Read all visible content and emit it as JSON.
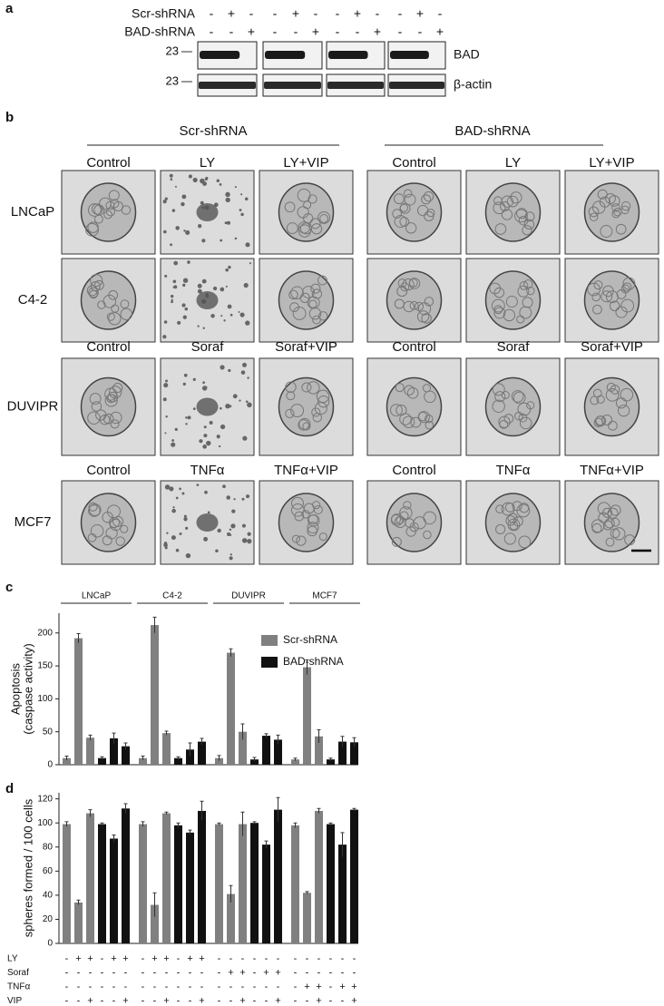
{
  "panel_a": {
    "label": "a",
    "rows": [
      {
        "name": "Scr-shRNA",
        "signs": [
          "-",
          "+",
          "-",
          "-",
          "+",
          "-",
          "-",
          "+",
          "-",
          "-",
          "+",
          "-"
        ]
      },
      {
        "name": "BAD-shRNA",
        "signs": [
          "-",
          "-",
          "+",
          "-",
          "-",
          "+",
          "-",
          "-",
          "+",
          "-",
          "-",
          "+"
        ]
      }
    ],
    "blots": [
      {
        "marker": "23",
        "name": "BAD"
      },
      {
        "marker": "23",
        "name": "β-actin"
      }
    ]
  },
  "panel_b": {
    "label": "b",
    "groups": [
      "Scr-shRNA",
      "BAD-shRNA"
    ],
    "rows": [
      {
        "name": "LNCaP",
        "headers": [
          "Control",
          "LY",
          "LY+VIP",
          "Control",
          "LY",
          "LY+VIP"
        ]
      },
      {
        "name": "C4-2"
      },
      {
        "name": "DUVIPR",
        "headers": [
          "Control",
          "Soraf",
          "Soraf+VIP",
          "Control",
          "Soraf",
          "Soraf+VIP"
        ]
      },
      {
        "name": "MCF7",
        "headers": [
          "Control",
          "TNFα",
          "TNFα+VIP",
          "Control",
          "TNFα",
          "TNFα+VIP"
        ]
      }
    ]
  },
  "chart_data": [
    {
      "type": "bar",
      "label": "c",
      "y_label": [
        "Apoptosis",
        "(caspase activity)"
      ],
      "groups": [
        "LNCaP",
        "C4-2",
        "DUVIPR",
        "MCF7"
      ],
      "categories": [
        null,
        null,
        null,
        null,
        null,
        null,
        null,
        null,
        null,
        null,
        null,
        null,
        null,
        null,
        null,
        null,
        null,
        null,
        null,
        null,
        null,
        null,
        null,
        null
      ],
      "series": [
        {
          "name": "Scr-shRNA",
          "color": "#808080",
          "values": [
            10,
            192,
            41,
            null,
            null,
            null,
            10,
            212,
            48,
            null,
            null,
            null,
            10,
            170,
            50,
            null,
            null,
            null,
            8,
            148,
            43,
            null,
            null,
            null
          ],
          "errors": [
            3,
            7,
            4,
            null,
            null,
            null,
            3,
            12,
            3,
            null,
            null,
            null,
            4,
            6,
            12,
            null,
            null,
            null,
            2,
            11,
            10,
            null,
            null,
            null
          ]
        },
        {
          "name": "BAD-shRNA",
          "color": "#111111",
          "values": [
            null,
            null,
            null,
            10,
            40,
            28,
            null,
            null,
            null,
            10,
            23,
            35,
            null,
            null,
            null,
            8,
            44,
            38,
            null,
            null,
            null,
            8,
            35,
            34
          ],
          "errors": [
            null,
            null,
            null,
            2,
            8,
            5,
            null,
            null,
            null,
            2,
            10,
            5,
            null,
            null,
            null,
            3,
            3,
            7,
            null,
            null,
            null,
            2,
            8,
            7
          ]
        }
      ],
      "ylim": [
        0,
        230
      ],
      "yticks": [
        0,
        50,
        100,
        150,
        200
      ],
      "legend": "top-right"
    },
    {
      "type": "bar",
      "label": "d",
      "y_label": [
        "spheres formed / 100 cells"
      ],
      "categories": [
        null,
        null,
        null,
        null,
        null,
        null,
        null,
        null,
        null,
        null,
        null,
        null,
        null,
        null,
        null,
        null,
        null,
        null,
        null,
        null,
        null,
        null,
        null,
        null
      ],
      "series": [
        {
          "name": "Scr-shRNA",
          "color": "#808080",
          "values": [
            99,
            34,
            108,
            null,
            null,
            null,
            99,
            32,
            108,
            null,
            null,
            null,
            99,
            41,
            99,
            null,
            null,
            null,
            98,
            42,
            110,
            null,
            null,
            null
          ],
          "errors": [
            2,
            2,
            3,
            null,
            null,
            null,
            2,
            10,
            1,
            null,
            null,
            null,
            1,
            7,
            10,
            null,
            null,
            null,
            2,
            1,
            2,
            null,
            null,
            null
          ]
        },
        {
          "name": "BAD-shRNA",
          "color": "#111111",
          "values": [
            null,
            null,
            null,
            99,
            87,
            112,
            null,
            null,
            null,
            98,
            92,
            110,
            null,
            null,
            null,
            100,
            82,
            111,
            null,
            null,
            null,
            99,
            82,
            111
          ],
          "errors": [
            null,
            null,
            null,
            1,
            3,
            4,
            null,
            null,
            null,
            2,
            2,
            8,
            null,
            null,
            null,
            1,
            3,
            10,
            null,
            null,
            null,
            1,
            10,
            1
          ]
        }
      ],
      "ylim": [
        0,
        125
      ],
      "yticks": [
        0,
        20,
        40,
        60,
        80,
        100,
        120
      ],
      "treatments": [
        {
          "name": "LY",
          "signs": [
            "-",
            "+",
            "+",
            "-",
            "+",
            "+",
            "-",
            "+",
            "+",
            "-",
            "+",
            "+",
            "-",
            "-",
            "-",
            "-",
            "-",
            "-",
            "-",
            "-",
            "-",
            "-",
            "-",
            "-"
          ]
        },
        {
          "name": "Soraf",
          "signs": [
            "-",
            "-",
            "-",
            "-",
            "-",
            "-",
            "-",
            "-",
            "-",
            "-",
            "-",
            "-",
            "-",
            "+",
            "+",
            "-",
            "+",
            "+",
            "-",
            "-",
            "-",
            "-",
            "-",
            "-"
          ]
        },
        {
          "name": "TNFα",
          "signs": [
            "-",
            "-",
            "-",
            "-",
            "-",
            "-",
            "-",
            "-",
            "-",
            "-",
            "-",
            "-",
            "-",
            "-",
            "-",
            "-",
            "-",
            "-",
            "-",
            "+",
            "+",
            "-",
            "+",
            "+"
          ]
        },
        {
          "name": "VIP",
          "signs": [
            "-",
            "-",
            "+",
            "-",
            "-",
            "+",
            "-",
            "-",
            "+",
            "-",
            "-",
            "+",
            "-",
            "-",
            "+",
            "-",
            "-",
            "+",
            "-",
            "-",
            "+",
            "-",
            "-",
            "+"
          ]
        }
      ]
    }
  ]
}
